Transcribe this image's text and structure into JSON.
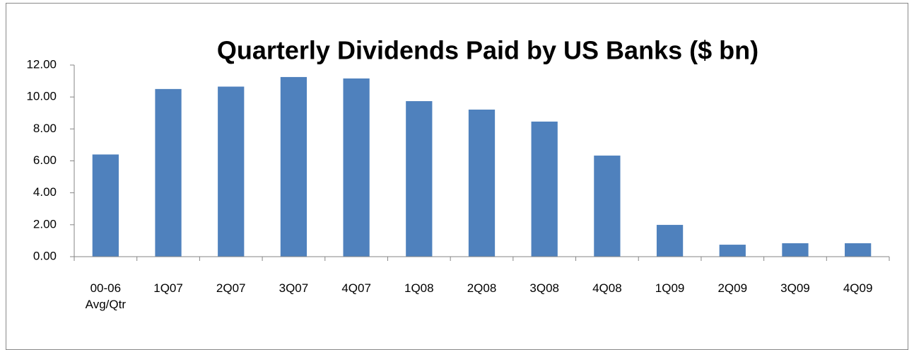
{
  "chart_data": {
    "type": "bar",
    "title": "Quarterly Dividends Paid by US Banks ($ bn)",
    "categories": [
      "00-06 Avg/Qtr",
      "1Q07",
      "2Q07",
      "3Q07",
      "4Q07",
      "1Q08",
      "2Q08",
      "3Q08",
      "4Q08",
      "1Q09",
      "2Q09",
      "3Q09",
      "4Q09"
    ],
    "values": [
      6.4,
      10.5,
      10.65,
      11.25,
      11.16,
      9.74,
      9.21,
      8.46,
      6.33,
      1.99,
      0.75,
      0.84,
      0.84
    ],
    "color": "#4f81bd",
    "ylim": [
      0,
      12
    ],
    "yticks": [
      {
        "value": 0,
        "label": "0.00"
      },
      {
        "value": 2,
        "label": "2.00"
      },
      {
        "value": 4,
        "label": "4.00"
      },
      {
        "value": 6,
        "label": "6.00"
      },
      {
        "value": 8,
        "label": "8.00"
      },
      {
        "value": 10,
        "label": "10.00"
      },
      {
        "value": 12,
        "label": "12.00"
      }
    ],
    "grid": false
  }
}
